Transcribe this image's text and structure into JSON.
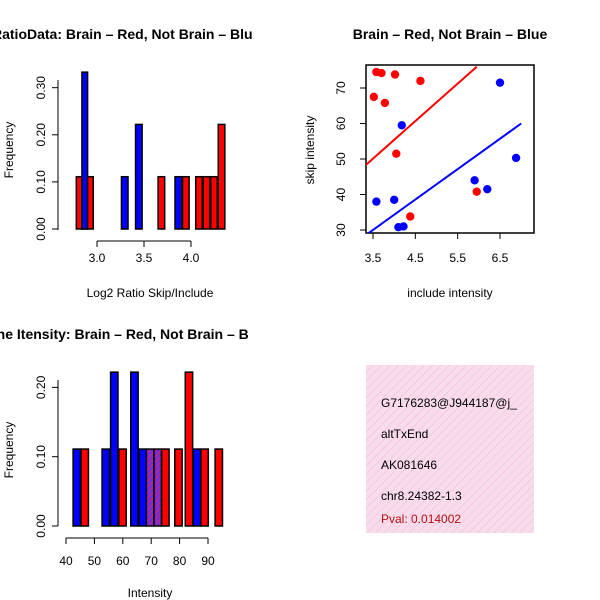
{
  "colors": {
    "red": "#ff0000",
    "blue": "#0000ff",
    "overlap": "#8e2ba7",
    "panel_bg": "#f8dcec",
    "pval": "#b01010"
  },
  "chart_data": [
    {
      "id": "ratio",
      "type": "bar",
      "title": "RatioData: Brain – Red, Not Brain – Blu",
      "xlabel": "Log2 Ratio Skip/Include",
      "ylabel": "Frequency",
      "xlim": [
        2.7,
        4.5
      ],
      "ylim": [
        0,
        0.35
      ],
      "xticks": [
        "3.0",
        "3.5",
        "4.0"
      ],
      "yticks": [
        "0.00",
        "0.10",
        "0.20",
        "0.30"
      ],
      "bins": [
        {
          "x": 2.78,
          "w": 0.06,
          "color": "red",
          "value": 0.111
        },
        {
          "x": 2.84,
          "w": 0.06,
          "color": "overlap",
          "value": 0.111
        },
        {
          "x": 2.84,
          "w": 0.06,
          "color": "blue",
          "value": 0.333
        },
        {
          "x": 2.9,
          "w": 0.06,
          "color": "red",
          "value": 0.111
        },
        {
          "x": 3.26,
          "w": 0.07,
          "color": "blue",
          "value": 0.111
        },
        {
          "x": 3.41,
          "w": 0.07,
          "color": "blue",
          "value": 0.222
        },
        {
          "x": 3.65,
          "w": 0.07,
          "color": "red",
          "value": 0.111
        },
        {
          "x": 3.83,
          "w": 0.07,
          "color": "blue",
          "value": 0.111
        },
        {
          "x": 3.91,
          "w": 0.07,
          "color": "red",
          "value": 0.111
        },
        {
          "x": 4.05,
          "w": 0.07,
          "color": "red",
          "value": 0.111
        },
        {
          "x": 4.13,
          "w": 0.07,
          "color": "red",
          "value": 0.111
        },
        {
          "x": 4.21,
          "w": 0.07,
          "color": "red",
          "value": 0.111
        },
        {
          "x": 4.29,
          "w": 0.07,
          "color": "red",
          "value": 0.222
        }
      ]
    },
    {
      "id": "scatter",
      "type": "scatter",
      "title": "Brain – Red, Not Brain – Blue",
      "xlabel": "include intensity",
      "ylabel": "skip intensity",
      "xlim": [
        3.3,
        7.0
      ],
      "ylim": [
        29,
        76
      ],
      "xticks": [
        "3.5",
        "4.5",
        "5.5",
        "6.5"
      ],
      "xtick_values": [
        3.5,
        4.5,
        5.5,
        6.5
      ],
      "yticks": [
        "30",
        "40",
        "50",
        "60",
        "70"
      ],
      "ytick_values": [
        30,
        40,
        50,
        60,
        70
      ],
      "red_points": [
        [
          3.52,
          67.5
        ],
        [
          3.58,
          74.5
        ],
        [
          3.7,
          74.2
        ],
        [
          3.78,
          65.8
        ],
        [
          4.02,
          73.8
        ],
        [
          4.05,
          51.5
        ],
        [
          4.38,
          33.8
        ],
        [
          4.62,
          72.0
        ],
        [
          5.95,
          40.8
        ]
      ],
      "blue_points": [
        [
          3.58,
          38.0
        ],
        [
          4.0,
          38.5
        ],
        [
          4.1,
          30.8
        ],
        [
          4.18,
          59.5
        ],
        [
          4.22,
          31.0
        ],
        [
          5.9,
          44.0
        ],
        [
          6.2,
          41.5
        ],
        [
          6.5,
          71.5
        ],
        [
          6.88,
          50.3
        ]
      ],
      "red_line": [
        [
          3.3,
          48.0
        ],
        [
          5.95,
          76.0
        ]
      ],
      "blue_line": [
        [
          3.3,
          28.3
        ],
        [
          7.0,
          60.0
        ]
      ]
    },
    {
      "id": "intensity",
      "type": "bar",
      "title": "Gene Itensity: Brain – Red, Not Brain – B",
      "xlabel": "Intensity",
      "ylabel": "Frequency",
      "xlim": [
        40,
        97
      ],
      "ylim": [
        0,
        0.24
      ],
      "xticks": [
        "40",
        "50",
        "60",
        "70",
        "80",
        "90"
      ],
      "xtick_values": [
        40,
        50,
        60,
        70,
        80,
        90
      ],
      "yticks": [
        "0.00",
        "0.10",
        "0.20"
      ],
      "ytick_values": [
        0,
        0.1,
        0.2
      ],
      "bins": [
        {
          "x": 42.5,
          "w": 2.6,
          "color": "blue",
          "value": 0.111
        },
        {
          "x": 45.3,
          "w": 2.6,
          "color": "red",
          "value": 0.111
        },
        {
          "x": 52.7,
          "w": 2.6,
          "color": "blue",
          "value": 0.111
        },
        {
          "x": 55.7,
          "w": 2.6,
          "color": "blue",
          "value": 0.222
        },
        {
          "x": 58.6,
          "w": 2.6,
          "color": "red",
          "value": 0.111
        },
        {
          "x": 62.8,
          "w": 2.6,
          "color": "blue",
          "value": 0.222
        },
        {
          "x": 65.7,
          "w": 2.6,
          "color": "blue",
          "value": 0.111
        },
        {
          "x": 68.3,
          "w": 2.6,
          "color": "overlap",
          "value": 0.111
        },
        {
          "x": 71.0,
          "w": 2.6,
          "color": "overlap",
          "value": 0.111
        },
        {
          "x": 73.7,
          "w": 2.6,
          "color": "red",
          "value": 0.111
        },
        {
          "x": 78.3,
          "w": 2.6,
          "color": "red",
          "value": 0.111
        },
        {
          "x": 82.0,
          "w": 2.6,
          "color": "red",
          "value": 0.222
        },
        {
          "x": 84.8,
          "w": 2.6,
          "color": "blue",
          "value": 0.111
        },
        {
          "x": 87.5,
          "w": 2.6,
          "color": "red",
          "value": 0.111
        },
        {
          "x": 92.5,
          "w": 2.6,
          "color": "red",
          "value": 0.111
        }
      ]
    }
  ],
  "info_panel": {
    "gene_id": "G7176283@J944187@j_",
    "event_type": "altTxEnd",
    "accession": "AK081646",
    "location": "chr8.24382-1.3",
    "pval": "Pval: 0.014002"
  }
}
